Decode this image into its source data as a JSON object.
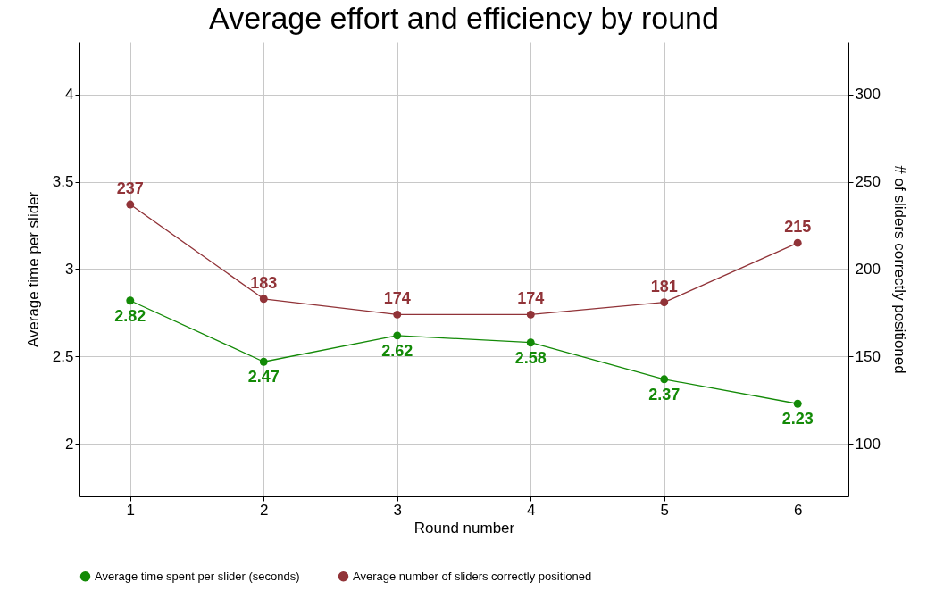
{
  "chart_data": {
    "type": "line",
    "title": "Average effort and efficiency by round",
    "xlabel": "Round number",
    "ylabel": "Average time per slider",
    "y2label": "# of sliders correctly positioned",
    "x": [
      1,
      2,
      3,
      4,
      5,
      6
    ],
    "series": [
      {
        "name": "Average time spent per slider (seconds)",
        "color": "#138a07",
        "values": [
          2.82,
          2.47,
          2.62,
          2.58,
          2.37,
          2.23
        ]
      },
      {
        "name": "Average number of sliders correctly positioned",
        "color": "#913338",
        "values": [
          237,
          183,
          174,
          174,
          181,
          215
        ],
        "axis": "y2"
      }
    ],
    "xlim": [
      0.62,
      6.38
    ],
    "xticks": [
      1,
      2,
      3,
      4,
      5,
      6
    ],
    "ylim": [
      1.7,
      4.3
    ],
    "yticks": [
      2,
      2.5,
      3,
      3.5,
      4
    ],
    "y2lim": [
      70,
      330
    ],
    "y2ticks": [
      100,
      150,
      200,
      250,
      300
    ],
    "grid": true,
    "legend": "bottom",
    "marker": "circle",
    "line_style": "solid",
    "data_labels": true
  }
}
